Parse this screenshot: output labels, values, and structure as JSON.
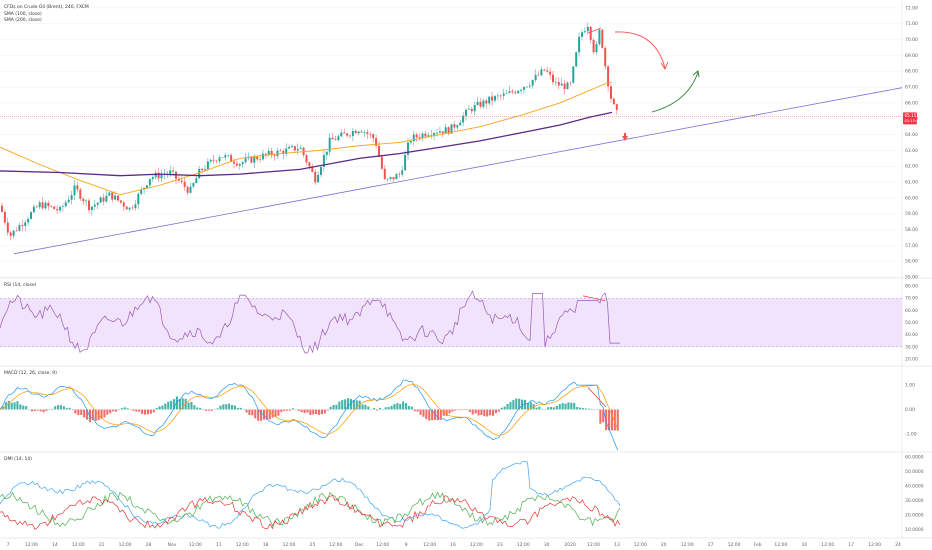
{
  "colors": {
    "up": "#26a69a",
    "down": "#ef5350",
    "sma100": "#f5a623",
    "sma200": "#5b2a86",
    "trendline": "#7b6fd6",
    "rsi": "#9b59b6",
    "rsi_band": "#f0e3fb",
    "macd": "#2196f3",
    "signal": "#ff9800",
    "dmi_plus": "#4caf50",
    "dmi_minus": "#e53935",
    "adx": "#42a5f5",
    "current_price": "#f23645"
  },
  "chart_data": [
    {
      "type": "candlestick",
      "title": "CFDs on Crude Oil (Brent), 240, FXCM",
      "legend": [
        "SMA (100, close)",
        "SMA (200, close)"
      ],
      "legend_placement": "top-left",
      "y_ticks": [
        "72.00",
        "71.00",
        "70.00",
        "69.00",
        "68.00",
        "67.00",
        "66.00",
        "65.00",
        "64.00",
        "63.00",
        "62.00",
        "61.00",
        "60.00",
        "59.00",
        "58.00",
        "57.00",
        "56.00",
        "55.00"
      ],
      "ylim": [
        55,
        72.5
      ],
      "current_price_label": "65.15",
      "current_price": 65.15,
      "current_price_sublabel": "02:15:08",
      "trendline": {
        "from": [
          0,
          56.3
        ],
        "to": [
          1100,
          69.3
        ]
      },
      "sma100": [
        [
          0,
          63.2
        ],
        [
          40,
          62.1
        ],
        [
          80,
          61.1
        ],
        [
          120,
          60.2
        ],
        [
          160,
          60.8
        ],
        [
          200,
          61.6
        ],
        [
          240,
          62.5
        ],
        [
          280,
          62.8
        ],
        [
          320,
          63.0
        ],
        [
          360,
          63.3
        ],
        [
          400,
          63.5
        ],
        [
          440,
          64.0
        ],
        [
          480,
          64.5
        ],
        [
          520,
          65.2
        ],
        [
          560,
          66.0
        ],
        [
          590,
          66.8
        ],
        [
          605,
          67.2
        ],
        [
          612,
          67.3
        ]
      ],
      "sma200": [
        [
          0,
          61.7
        ],
        [
          60,
          61.6
        ],
        [
          120,
          61.4
        ],
        [
          160,
          61.5
        ],
        [
          200,
          61.4
        ],
        [
          240,
          61.5
        ],
        [
          300,
          61.8
        ],
        [
          360,
          62.5
        ],
        [
          400,
          62.8
        ],
        [
          440,
          63.2
        ],
        [
          480,
          63.6
        ],
        [
          520,
          64.1
        ],
        [
          560,
          64.6
        ],
        [
          590,
          65.1
        ],
        [
          612,
          65.4
        ]
      ],
      "annotations": [
        "bearish-arrow",
        "bullish-arrow",
        "down-marker",
        "divergence-line"
      ]
    },
    {
      "type": "line",
      "title": "RSI (14, close)",
      "y_ticks": [
        "80.00",
        "70.00",
        "60.00",
        "50.00",
        "40.00",
        "30.00",
        "20.00"
      ],
      "ylim": [
        15,
        85
      ],
      "band": [
        30,
        70
      ]
    },
    {
      "type": "bar",
      "title": "MACD (12, 26, close, 9)",
      "y_ticks": [
        "1.00",
        "0.00",
        "-1.00"
      ],
      "ylim": [
        -1.7,
        1.7
      ]
    },
    {
      "type": "line",
      "title": "DMI (14, 14)",
      "y_ticks": [
        "60.0000",
        "50.0000",
        "40.0000",
        "30.0000",
        "20.0000",
        "10.0000"
      ],
      "ylim": [
        5,
        62
      ]
    }
  ],
  "x_ticks": [
    "7",
    "12:00",
    "14",
    "12:00",
    "21",
    "12:00",
    "28",
    "Nov",
    "12:00",
    "11",
    "12:00",
    "18",
    "12:00",
    "25",
    "12:00",
    "Dec",
    "12:00",
    "9",
    "12:00",
    "16",
    "12:00",
    "23",
    "12:00",
    "30",
    "2020",
    "12:00",
    "13",
    "12:00",
    "20",
    "12:00",
    "27",
    "12:00",
    "Feb",
    "12:00",
    "10",
    "12:00",
    "17",
    "12:00",
    "24"
  ]
}
